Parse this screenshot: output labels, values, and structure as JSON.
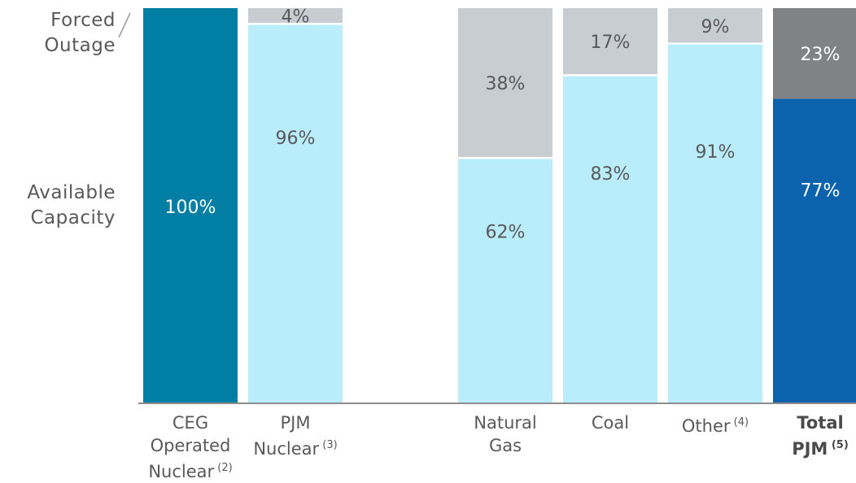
{
  "side_labels": {
    "forced_outage": [
      "Forced",
      "Outage"
    ],
    "available_capacity": [
      "Available",
      "Capacity"
    ]
  },
  "colors": {
    "ceg_available": "#007ea3",
    "available": "#b9edfb",
    "outage": "#c8cdd2",
    "total_available": "#0b62ad",
    "total_outage": "#808285",
    "label_dark": "#ffffff",
    "label_light": "#595959",
    "axis": "#8c8c8c"
  },
  "chart_data": {
    "type": "bar",
    "stacked": true,
    "ylim": [
      0,
      100
    ],
    "categories": [
      {
        "lines": [
          "CEG",
          "Operated",
          "Nuclear"
        ],
        "note": "(2)",
        "bold": false
      },
      {
        "lines": [
          "PJM",
          "Nuclear"
        ],
        "note": "(3)",
        "bold": false
      },
      {
        "lines": [
          "Natural",
          "Gas"
        ],
        "note": "",
        "bold": false
      },
      {
        "lines": [
          "Coal"
        ],
        "note": "",
        "bold": false
      },
      {
        "lines": [
          "Other"
        ],
        "note": "(4)",
        "bold": false
      },
      {
        "lines": [
          "Total",
          "PJM"
        ],
        "note": "(5)",
        "bold": true
      }
    ],
    "series": [
      {
        "name": "Available Capacity",
        "values": [
          100,
          96,
          62,
          83,
          91,
          77
        ],
        "labels": [
          "100%",
          "96%",
          "62%",
          "83%",
          "91%",
          "77%"
        ]
      },
      {
        "name": "Forced Outage",
        "values": [
          0,
          4,
          38,
          17,
          9,
          23
        ],
        "labels": [
          "",
          "4%",
          "38%",
          "17%",
          "9%",
          "23%"
        ]
      }
    ]
  }
}
